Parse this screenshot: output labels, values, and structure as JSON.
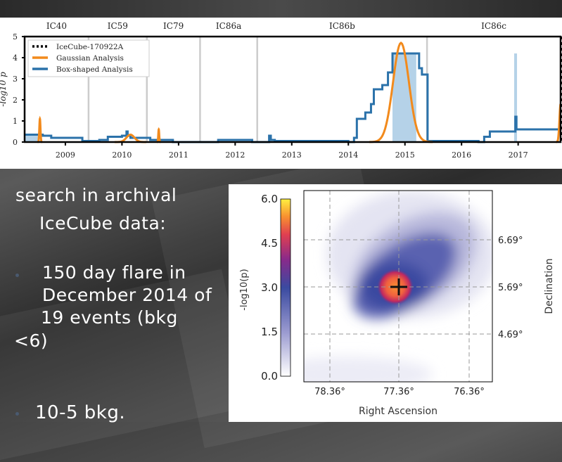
{
  "slide": {
    "heading_line1": "search in archival",
    "heading_line2": "IceCube data:",
    "bullets": [
      {
        "lines": [
          "150 day flare in",
          "December 2014 of",
          " 19 events (bkg",
          "<6)"
        ]
      },
      {
        "lines": [
          "10-5 bkg."
        ]
      }
    ]
  },
  "chart_data": [
    {
      "type": "line",
      "ylabel": "-log10 p",
      "xlim": [
        2008.28,
        2017.75
      ],
      "ylim": [
        0,
        5
      ],
      "yticks": [
        "0",
        "1",
        "2",
        "3",
        "4",
        "5"
      ],
      "xticks": [
        "2009",
        "2010",
        "2011",
        "2012",
        "2013",
        "2014",
        "2015",
        "2016",
        "2017"
      ],
      "seasons": [
        {
          "label": "IC40",
          "start": 2008.28,
          "end": 2009.41
        },
        {
          "label": "IC59",
          "start": 2009.41,
          "end": 2010.44
        },
        {
          "label": "IC79",
          "start": 2010.44,
          "end": 2011.38
        },
        {
          "label": "IC86a",
          "start": 2011.38,
          "end": 2012.39
        },
        {
          "label": "IC86b",
          "start": 2012.39,
          "end": 2015.39
        },
        {
          "label": "IC86c",
          "start": 2015.39,
          "end": 2017.75
        }
      ],
      "legend": {
        "position": "top-left",
        "entries": [
          {
            "label": "IceCube-170922A",
            "color": "#000000",
            "style": "dotted"
          },
          {
            "label": "Gaussian Analysis",
            "color": "#f28a1c"
          },
          {
            "label": "Box-shaped Analysis",
            "color": "#2b72aa"
          }
        ]
      },
      "event_time": 2017.73,
      "box_series": {
        "x": [
          2008.28,
          2008.6,
          2008.75,
          2009.3,
          2009.6,
          2009.75,
          2010.0,
          2010.08,
          2010.1,
          2010.15,
          2010.5,
          2010.9,
          2011.7,
          2012.0,
          2012.3,
          2012.6,
          2012.63,
          2012.7,
          2014.0,
          2014.1,
          2014.15,
          2014.3,
          2014.4,
          2014.45,
          2014.6,
          2014.7,
          2014.78,
          2015.2,
          2015.25,
          2015.3,
          2015.4,
          2016.3,
          2016.4,
          2016.5,
          2016.93,
          2016.95,
          2016.97,
          2017.75
        ],
        "y": [
          0.35,
          0.3,
          0.2,
          0.05,
          0.1,
          0.25,
          0.3,
          0.5,
          0.3,
          0.2,
          0.1,
          0.0,
          0.1,
          0.1,
          0.0,
          0.3,
          0.1,
          0.05,
          0.0,
          0.2,
          1.1,
          1.4,
          1.8,
          2.5,
          2.7,
          3.3,
          4.2,
          4.2,
          3.5,
          3.2,
          0.05,
          0.0,
          0.25,
          0.5,
          0.5,
          1.2,
          0.6,
          0.6
        ]
      },
      "box_shaded": [
        [
          2008.28,
          2008.55
        ],
        [
          2014.78,
          2015.2
        ],
        [
          2016.93,
          2016.98
        ]
      ],
      "gaussian_flares": [
        {
          "center": 2008.55,
          "peak": 1.1,
          "sigma": 0.01
        },
        {
          "center": 2010.15,
          "peak": 0.35,
          "sigma": 0.07
        },
        {
          "center": 2010.65,
          "peak": 0.6,
          "sigma": 0.008
        },
        {
          "center": 2014.93,
          "peak": 4.7,
          "sigma": 0.14
        },
        {
          "center": 2017.75,
          "peak": 1.8,
          "sigma": 0.02
        }
      ]
    },
    {
      "type": "heatmap",
      "xlabel": "Right Ascension",
      "ylabel": "Declination",
      "colorbar_label": "-log10(p)",
      "colorbar_ticks": [
        "6.0",
        "4.5",
        "3.0",
        "1.5",
        "0.0"
      ],
      "xticks": [
        "78.36°",
        "77.36°",
        "76.36°"
      ],
      "yticks": [
        "6.69°",
        "5.69°",
        "4.69°"
      ],
      "best_fit": {
        "ra": 77.36,
        "dec": 5.69
      }
    }
  ]
}
